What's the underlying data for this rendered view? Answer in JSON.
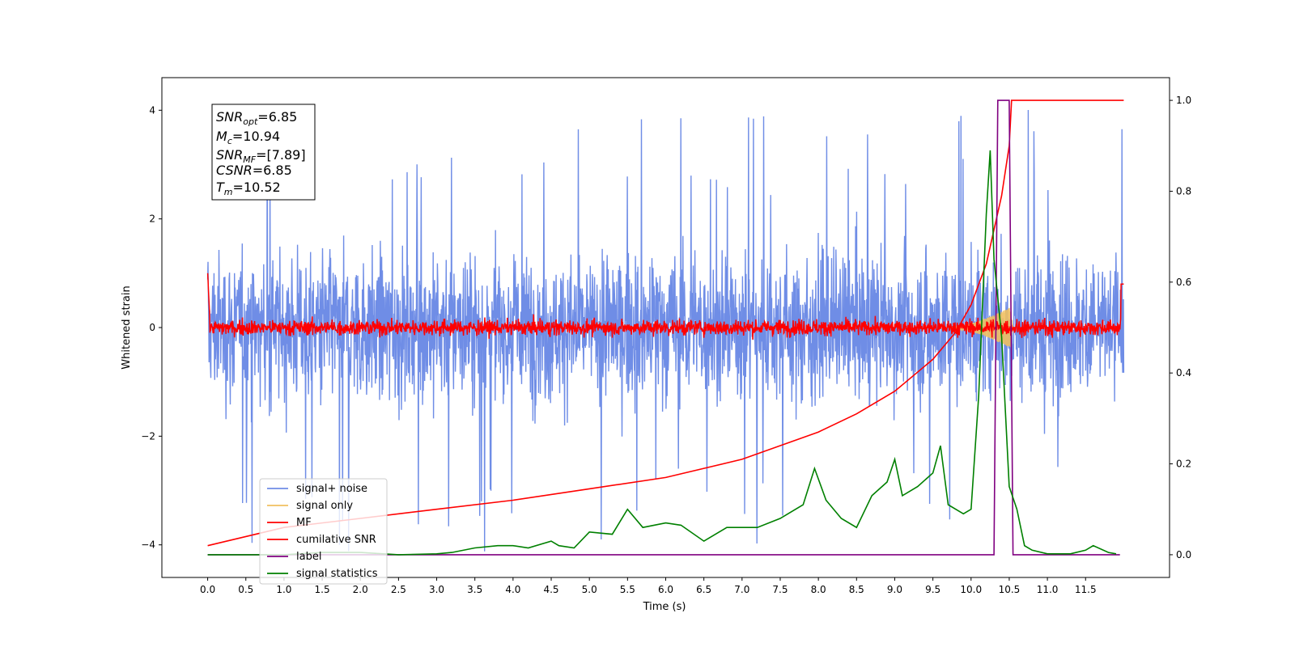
{
  "chart_data": {
    "type": "line",
    "xlabel": "Time (s)",
    "ylabel": "Whitened strain",
    "xlim": [
      -0.6,
      12.6
    ],
    "ylim": [
      -4.6,
      4.6
    ],
    "y2lim": [
      -0.05,
      1.05
    ],
    "grid": false,
    "legend_position": "lower-left",
    "x_ticks": [
      "0.0",
      "0.5",
      "1.0",
      "1.5",
      "2.0",
      "2.5",
      "3.0",
      "3.5",
      "4.0",
      "4.5",
      "5.0",
      "5.5",
      "6.0",
      "6.5",
      "7.0",
      "7.5",
      "8.0",
      "8.5",
      "9.0",
      "9.5",
      "10.0",
      "10.5",
      "11.0",
      "11.5"
    ],
    "y_ticks": [
      -4,
      -2,
      0,
      2,
      4
    ],
    "y2_ticks": [
      "0.0",
      "0.2",
      "0.4",
      "0.6",
      "0.8",
      "1.0"
    ],
    "annotation": {
      "lines": [
        {
          "base": "SNR",
          "sub": "opt",
          "value": "=6.85"
        },
        {
          "base": "M",
          "sub": "c",
          "value": "=10.94"
        },
        {
          "base": "SNR",
          "sub": "MF",
          "value": "=[7.89]"
        },
        {
          "base": "CSNR",
          "sub": "",
          "value": "=6.85"
        },
        {
          "base": "T",
          "sub": "m",
          "value": "=10.52"
        }
      ]
    },
    "series": [
      {
        "name": "signal+ noise",
        "color": "#6f8de6",
        "axis": "left",
        "kind": "noise",
        "x_range": [
          0,
          12
        ],
        "spread": 1.25,
        "peak": 4.15
      },
      {
        "name": "signal only",
        "color": "#f0c060",
        "axis": "left",
        "kind": "chirp",
        "x_range": [
          9.7,
          10.55
        ],
        "max_amplitude": 0.4
      },
      {
        "name": "MF",
        "color": "#ff0000",
        "axis": "left",
        "kind": "noise",
        "x_range": [
          0,
          12
        ],
        "spread": 0.1
      },
      {
        "name": "cumilative SNR",
        "color": "#ff0000",
        "axis": "right",
        "x": [
          0.0,
          1.0,
          2.0,
          3.0,
          4.0,
          5.0,
          6.0,
          7.0,
          8.0,
          8.5,
          9.0,
          9.5,
          9.8,
          10.0,
          10.2,
          10.4,
          10.5,
          10.53,
          12.0
        ],
        "values": [
          0.02,
          0.06,
          0.08,
          0.1,
          0.12,
          0.145,
          0.17,
          0.21,
          0.27,
          0.31,
          0.36,
          0.43,
          0.49,
          0.55,
          0.64,
          0.79,
          0.9,
          1.0,
          1.0
        ]
      },
      {
        "name": "label",
        "color": "#800080",
        "axis": "right",
        "x": [
          0.0,
          10.3,
          10.35,
          10.5,
          10.55,
          11.95
        ],
        "values": [
          0.0,
          0.0,
          1.0,
          1.0,
          0.0,
          0.0
        ]
      },
      {
        "name": "signal statistics",
        "color": "#008000",
        "axis": "right",
        "x": [
          0.0,
          0.5,
          1.0,
          1.5,
          2.0,
          2.5,
          3.0,
          3.2,
          3.5,
          3.8,
          4.0,
          4.2,
          4.5,
          4.6,
          4.8,
          5.0,
          5.3,
          5.5,
          5.7,
          6.0,
          6.2,
          6.5,
          6.8,
          7.0,
          7.2,
          7.5,
          7.8,
          7.95,
          8.1,
          8.3,
          8.5,
          8.7,
          8.9,
          9.0,
          9.1,
          9.3,
          9.5,
          9.6,
          9.7,
          9.9,
          10.0,
          10.1,
          10.2,
          10.25,
          10.3,
          10.4,
          10.5,
          10.6,
          10.7,
          10.8,
          11.0,
          11.3,
          11.5,
          11.6,
          11.8,
          11.9
        ],
        "values": [
          0.0,
          0.0,
          0.0,
          0.005,
          0.005,
          0.0,
          0.002,
          0.005,
          0.015,
          0.02,
          0.02,
          0.015,
          0.03,
          0.02,
          0.015,
          0.05,
          0.045,
          0.1,
          0.06,
          0.07,
          0.065,
          0.03,
          0.06,
          0.06,
          0.06,
          0.08,
          0.11,
          0.19,
          0.12,
          0.08,
          0.06,
          0.13,
          0.16,
          0.21,
          0.13,
          0.15,
          0.18,
          0.24,
          0.11,
          0.09,
          0.1,
          0.35,
          0.75,
          0.89,
          0.65,
          0.48,
          0.15,
          0.1,
          0.02,
          0.01,
          0.002,
          0.002,
          0.01,
          0.02,
          0.005,
          0.002
        ]
      }
    ]
  }
}
